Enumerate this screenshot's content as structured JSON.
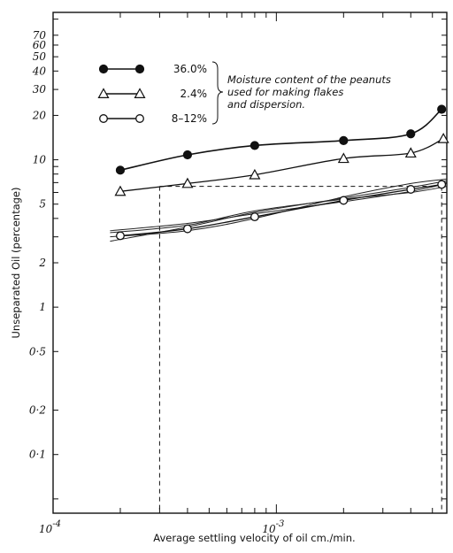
{
  "chart_data": {
    "type": "line",
    "xscale": "log",
    "yscale": "log",
    "xlabel": "Average settling velocity of oil cm./min.",
    "ylabel": "Unseparated Oil (percentage)",
    "xlim": [
      0.0001,
      0.0058
    ],
    "ylim": [
      0.04,
      100
    ],
    "x_tick_labels": [
      {
        "value": 0.0001,
        "label": "10",
        "exp": "-4"
      },
      {
        "value": 0.001,
        "label": "10",
        "exp": "-3"
      }
    ],
    "y_tick_labels": [
      {
        "value": 70,
        "label": "70"
      },
      {
        "value": 60,
        "label": "60"
      },
      {
        "value": 50,
        "label": "50"
      },
      {
        "value": 40,
        "label": "40"
      },
      {
        "value": 30,
        "label": "30"
      },
      {
        "value": 20,
        "label": "20"
      },
      {
        "value": 10,
        "label": "10"
      },
      {
        "value": 5,
        "label": "5"
      },
      {
        "value": 2,
        "label": "2"
      },
      {
        "value": 1,
        "label": "1"
      },
      {
        "value": 0.5,
        "label": "0·5"
      },
      {
        "value": 0.2,
        "label": "0·2"
      },
      {
        "value": 0.1,
        "label": "0·1"
      }
    ],
    "series": [
      {
        "name": "36.0%",
        "marker": "filled-circle",
        "x": [
          0.0002,
          0.0004,
          0.0008,
          0.002,
          0.004,
          0.0055
        ],
        "y": [
          8.5,
          10.8,
          12.5,
          13.5,
          15,
          22
        ]
      },
      {
        "name": "2.4%",
        "marker": "open-triangle",
        "x": [
          0.0002,
          0.0004,
          0.0008,
          0.002,
          0.004,
          0.0056
        ],
        "y": [
          6.1,
          6.9,
          7.9,
          10.2,
          11.1,
          13.9
        ]
      },
      {
        "name": "8-12%",
        "marker": "open-circle",
        "x": [
          0.0002,
          0.0004,
          0.0008,
          0.002,
          0.004,
          0.0055
        ],
        "y": [
          3.05,
          3.4,
          4.1,
          5.3,
          6.3,
          6.8
        ]
      }
    ],
    "extra_curves": [
      {
        "x": [
          0.00018,
          0.0004,
          0.0008,
          0.002,
          0.004,
          0.0058
        ],
        "y": [
          2.8,
          3.5,
          4.4,
          5.5,
          6.5,
          7.2
        ]
      },
      {
        "x": [
          0.00018,
          0.0004,
          0.0008,
          0.002,
          0.004,
          0.0058
        ],
        "y": [
          3.3,
          3.7,
          4.3,
          5.2,
          6.1,
          6.9
        ]
      },
      {
        "x": [
          0.00018,
          0.0004,
          0.0008,
          0.002,
          0.004,
          0.0058
        ],
        "y": [
          3.0,
          3.3,
          4.0,
          5.6,
          6.9,
          7.4
        ]
      },
      {
        "x": [
          0.00018,
          0.0004,
          0.0008,
          0.002,
          0.004,
          0.0058
        ],
        "y": [
          3.2,
          3.6,
          4.5,
          5.4,
          6.0,
          6.6
        ]
      }
    ],
    "reference_lines": {
      "horizontal_y": 6.6,
      "vertical_x": [
        0.0003,
        0.0055
      ],
      "style": "dashed"
    },
    "legend": {
      "placement": "top-left",
      "entries": [
        "36.0%",
        "2.4%",
        "8-12%"
      ],
      "note": [
        "Moisture content of the peanuts",
        "used for making flakes",
        "and dispersion."
      ]
    },
    "grid": false
  }
}
